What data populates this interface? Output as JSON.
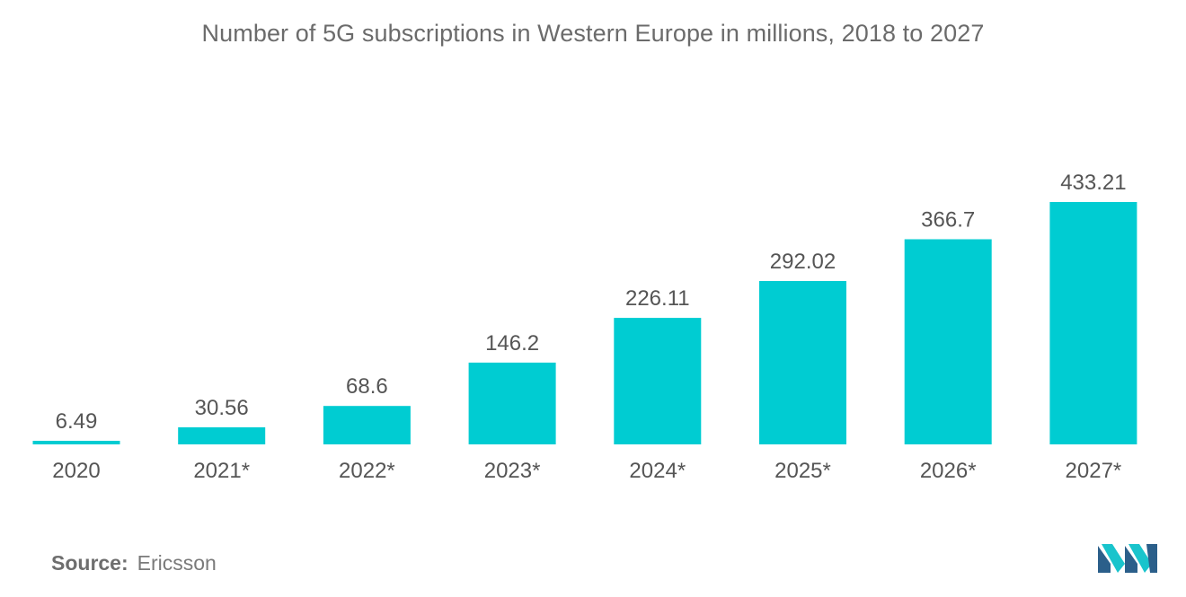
{
  "colors": {
    "bar": "#00ccd2",
    "text": "#555555",
    "title": "#6b6b6b",
    "logo_dark": "#2b5f8a",
    "logo_light": "#19c4cc"
  },
  "chart_data": {
    "type": "bar",
    "title": "Number of 5G subscriptions in Western Europe in millions, 2018 to 2027",
    "xlabel": "",
    "ylabel": "",
    "categories": [
      "2020",
      "2021*",
      "2022*",
      "2023*",
      "2024*",
      "2025*",
      "2026*",
      "2027*"
    ],
    "values": [
      6.49,
      30.56,
      68.6,
      146.2,
      226.11,
      292.02,
      366.7,
      433.21
    ],
    "value_labels": [
      "6.49",
      "30.56",
      "68.6",
      "146.2",
      "226.11",
      "292.02",
      "366.7",
      "433.21"
    ],
    "ylim": [
      0,
      433.21
    ],
    "grid": false,
    "legend": "none"
  },
  "source": {
    "label": "Source:",
    "value": "Ericsson"
  },
  "logo": {
    "name": "mordor-intelligence-logo-icon"
  }
}
